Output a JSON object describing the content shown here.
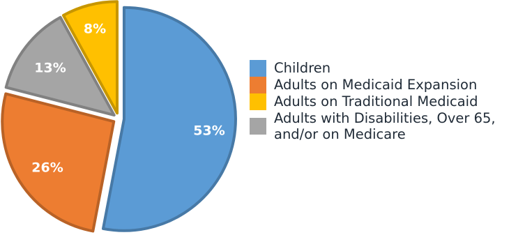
{
  "chart_data": {
    "type": "pie",
    "title": "",
    "legend_position": "right",
    "slices": [
      {
        "label": "Children",
        "value": 53,
        "display": "53%",
        "color": "#5b9bd5"
      },
      {
        "label": "Adults on Medicaid Expansion",
        "value": 26,
        "display": "26%",
        "color": "#ed7d31"
      },
      {
        "label": "Adults with Disabilities, Over 65, and/or on Medicare",
        "value": 13,
        "display": "13%",
        "color": "#a5a5a5"
      },
      {
        "label": "Adults on Traditional Medicaid",
        "value": 8,
        "display": "8%",
        "color": "#ffc000"
      }
    ]
  },
  "legend": {
    "items": [
      {
        "label": "Children",
        "color": "#5b9bd5"
      },
      {
        "label": "Adults on Medicaid Expansion",
        "color": "#ed7d31"
      },
      {
        "label": "Adults on Traditional Medicaid",
        "color": "#ffc000"
      },
      {
        "label": "Adults with Disabilities, Over 65, and/or on Medicare",
        "color": "#a5a5a5"
      }
    ]
  }
}
